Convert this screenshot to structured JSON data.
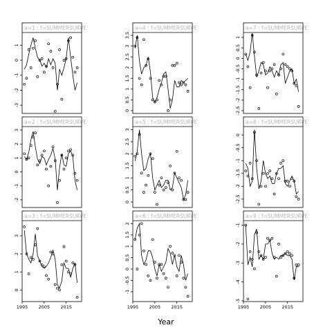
{
  "xlabel": "Year",
  "chart_data": [
    {
      "type": "line",
      "strip_label": "a=1 : f=SUMMERSURVE",
      "xlim": [
        1995,
        2022
      ],
      "ylim": [
        -3.5,
        1.8
      ],
      "yticks": [
        -3,
        -2,
        -1,
        0,
        1
      ],
      "show_xticks": false,
      "line": {
        "x": [
          1996,
          1997,
          1998,
          1999,
          2000,
          2001,
          2002,
          2003,
          2004,
          2005,
          2006,
          2007,
          2008,
          2009,
          2010,
          2011,
          2012,
          2013,
          2014,
          2015,
          2016,
          2017,
          2018,
          2019,
          2020
        ],
        "y": [
          -0.6,
          -0.3,
          0.4,
          1.0,
          1.5,
          0.8,
          0.2,
          0.0,
          -0.4,
          -0.2,
          -0.5,
          0.1,
          -0.3,
          0.1,
          -0.2,
          -2.0,
          -0.6,
          -1.0,
          -0.5,
          0.1,
          1.5,
          0.2,
          -1.0,
          -2.0,
          -1.5
        ]
      },
      "points": {
        "x": [
          1996,
          1997,
          1998,
          1999,
          2000,
          2001,
          2002,
          2003,
          2004,
          2005,
          2006,
          2007,
          2008,
          2009,
          2010,
          2011,
          2012,
          2013,
          2014,
          2015,
          2016,
          2017,
          2018,
          2019,
          2020
        ],
        "y": [
          -1.6,
          -1.2,
          0.7,
          -0.5,
          0.8,
          1.3,
          -1.1,
          0.0,
          0.1,
          -0.8,
          -0.4,
          1.1,
          0.6,
          -0.5,
          -3.4,
          -1.6,
          0.7,
          -2.6,
          0.0,
          0.1,
          1.3,
          1.5,
          0.2,
          -0.8,
          -0.5
        ]
      }
    },
    {
      "type": "line",
      "strip_label": "a=2 : f=SUMMERSURVE",
      "xlim": [
        1995,
        2022
      ],
      "ylim": [
        -2.5,
        3.2
      ],
      "yticks": [
        -2,
        -1,
        0,
        1,
        2,
        3
      ],
      "show_xticks": false,
      "line": {
        "x": [
          1996,
          1997,
          1998,
          1999,
          2000,
          2001,
          2002,
          2003,
          2004,
          2005,
          2006,
          2007,
          2008,
          2009,
          2010,
          2011,
          2012,
          2013,
          2014,
          2015,
          2016,
          2017,
          2018,
          2019,
          2020
        ],
        "y": [
          1.1,
          0.9,
          1.4,
          2.3,
          2.9,
          1.8,
          0.9,
          0.6,
          1.1,
          1.0,
          0.5,
          0.9,
          1.2,
          1.7,
          0.9,
          -1.3,
          0.3,
          1.3,
          0.5,
          0.4,
          1.3,
          1.5,
          1.1,
          -0.6,
          -1.3
        ]
      },
      "points": {
        "x": [
          1996,
          1997,
          1998,
          1999,
          2000,
          2001,
          2002,
          2003,
          2004,
          2005,
          2006,
          2007,
          2008,
          2009,
          2010,
          2011,
          2012,
          2013,
          2014,
          2015,
          2016,
          2017,
          2018,
          2019,
          2020
        ],
        "y": [
          1.3,
          0.9,
          1.0,
          1.9,
          2.5,
          2.8,
          0.5,
          0.8,
          1.2,
          1.5,
          0.2,
          -1.0,
          0.4,
          1.8,
          0.8,
          -2.2,
          -0.6,
          1.2,
          0.2,
          1.0,
          1.5,
          1.6,
          1.2,
          -0.1,
          -0.6
        ]
      }
    },
    {
      "type": "line",
      "strip_label": "a=3 : f=SUMMERSURVE",
      "xlim": [
        1995,
        2022
      ],
      "ylim": [
        -0.6,
        3.8
      ],
      "yticks": [
        0,
        1,
        2,
        3
      ],
      "show_xticks": true,
      "xticks": [
        1995,
        2005,
        2015
      ],
      "line": {
        "x": [
          1996,
          1997,
          1998,
          1999,
          2000,
          2001,
          2002,
          2003,
          2004,
          2005,
          2006,
          2007,
          2008,
          2009,
          2010,
          2011,
          2012,
          2013,
          2014,
          2015,
          2016,
          2017,
          2018,
          2019,
          2020
        ],
        "y": [
          3.3,
          2.0,
          1.7,
          1.5,
          2.0,
          3.1,
          1.9,
          1.6,
          1.3,
          1.2,
          1.3,
          1.5,
          1.8,
          2.2,
          1.7,
          0.3,
          0.1,
          0.5,
          1.5,
          1.2,
          1.2,
          0.7,
          1.2,
          1.5,
          0.4
        ]
      },
      "points": {
        "x": [
          1996,
          1997,
          1998,
          1999,
          2000,
          2001,
          2002,
          2003,
          2004,
          2005,
          2006,
          2007,
          2008,
          2009,
          2010,
          2011,
          2012,
          2013,
          2014,
          2015,
          2016,
          2017,
          2018,
          2019,
          2020
        ],
        "y": [
          3.5,
          2.0,
          0.9,
          1.8,
          1.7,
          2.5,
          3.4,
          1.6,
          1.4,
          1.3,
          0.8,
          0.6,
          2.1,
          2.0,
          0.3,
          0.1,
          0.0,
          1.4,
          2.4,
          1.6,
          1.0,
          0.9,
          1.5,
          1.4,
          -0.4
        ]
      }
    },
    {
      "type": "line",
      "strip_label": "a=4 : f=SUMMERSURVE",
      "xlim": [
        1995,
        2022
      ],
      "ylim": [
        -0.1,
        3.6
      ],
      "yticks": [
        0,
        0.5,
        1,
        1.5,
        2,
        2.5,
        3,
        3.5
      ],
      "show_xticks": false,
      "line": {
        "x": [
          1996,
          1997,
          1998,
          1999,
          2000,
          2001,
          2002,
          2003,
          2004,
          2005,
          2006,
          2007,
          2008,
          2009,
          2010,
          2011,
          2012,
          2013,
          2014,
          2015,
          2016,
          2017,
          2018,
          2019,
          2020
        ],
        "y": [
          2.9,
          3.5,
          2.3,
          1.7,
          2.0,
          2.1,
          2.5,
          1.8,
          0.6,
          0.4,
          0.6,
          1.0,
          1.3,
          1.7,
          1.8,
          1.0,
          0.1,
          0.5,
          1.4,
          1.1,
          1.1,
          1.4,
          1.3,
          1.4,
          1.5
        ]
      },
      "points": {
        "x": [
          1996,
          1997,
          1998,
          1999,
          2000,
          2001,
          2002,
          2003,
          2004,
          2005,
          2006,
          2007,
          2008,
          2009,
          2010,
          2011,
          2012,
          2013,
          2014,
          2015,
          2016,
          2017,
          2018,
          2019,
          2020
        ],
        "y": [
          3.0,
          3.4,
          1.5,
          1.2,
          3.3,
          2.1,
          2.4,
          1.5,
          0.5,
          0.4,
          0.5,
          1.4,
          1.2,
          1.6,
          1.6,
          0.0,
          0.5,
          2.1,
          2.1,
          2.2,
          1.3,
          1.2,
          1.3,
          1.2,
          0.9
        ]
      }
    },
    {
      "type": "line",
      "strip_label": "a=5 : f=SUMMERSURVE",
      "xlim": [
        1995,
        2022
      ],
      "ylim": [
        -0.2,
        3.1
      ],
      "yticks": [
        0,
        0.5,
        1,
        1.5,
        2,
        2.5,
        3
      ],
      "show_xticks": false,
      "line": {
        "x": [
          1996,
          1997,
          1998,
          1999,
          2000,
          2001,
          2002,
          2003,
          2004,
          2005,
          2006,
          2007,
          2008,
          2009,
          2010,
          2011,
          2012,
          2013,
          2014,
          2015,
          2016,
          2017,
          2018,
          2019,
          2020
        ],
        "y": [
          1.7,
          2.1,
          3.0,
          2.0,
          1.3,
          1.4,
          1.8,
          2.0,
          1.0,
          0.5,
          0.7,
          0.9,
          0.6,
          0.7,
          0.9,
          0.9,
          0.5,
          0.6,
          1.2,
          1.0,
          0.8,
          0.6,
          0.1,
          0.3,
          0.9
        ]
      },
      "points": {
        "x": [
          1996,
          1997,
          1998,
          1999,
          2000,
          2001,
          2002,
          2003,
          2004,
          2005,
          2006,
          2007,
          2008,
          2009,
          2010,
          2011,
          2012,
          2013,
          2014,
          2015,
          2016,
          2017,
          2018,
          2019,
          2020
        ],
        "y": [
          1.9,
          2.0,
          2.8,
          1.2,
          0.4,
          0.7,
          1.1,
          2.0,
          1.8,
          0.4,
          -0.1,
          0.7,
          1.0,
          0.5,
          0.6,
          0.8,
          1.5,
          0.5,
          1.2,
          2.1,
          1.0,
          0.9,
          0.1,
          0.1,
          0.4
        ]
      }
    },
    {
      "type": "line",
      "strip_label": "a=6 : f=SUMMERSURVE",
      "xlim": [
        1995,
        2022
      ],
      "ylim": [
        -1.4,
        2.1
      ],
      "yticks": [
        -1,
        -0.5,
        0,
        0.5,
        1,
        1.5,
        2
      ],
      "show_xticks": true,
      "xticks": [
        1995,
        2005,
        2015
      ],
      "line": {
        "x": [
          1996,
          1997,
          1998,
          1999,
          2000,
          2001,
          2002,
          2003,
          2004,
          2005,
          2006,
          2007,
          2008,
          2009,
          2010,
          2011,
          2012,
          2013,
          2014,
          2015,
          2016,
          2017,
          2018,
          2019,
          2020
        ],
        "y": [
          1.3,
          1.8,
          2.0,
          0.6,
          0.2,
          0.4,
          0.8,
          0.8,
          0.5,
          0.0,
          -0.3,
          0.2,
          -0.1,
          0.1,
          0.3,
          0.9,
          0.7,
          0.2,
          0.6,
          0.1,
          -0.1,
          0.6,
          0.2,
          -0.5,
          -0.2
        ]
      },
      "points": {
        "x": [
          1996,
          1997,
          1998,
          1999,
          2000,
          2001,
          2002,
          2003,
          2004,
          2005,
          2006,
          2007,
          2008,
          2009,
          2010,
          2011,
          2012,
          2013,
          2014,
          2015,
          2016,
          2017,
          2018,
          2019,
          2020
        ],
        "y": [
          1.3,
          0.0,
          1.5,
          2.0,
          0.8,
          0.2,
          -0.3,
          -0.5,
          1.3,
          0.3,
          -0.4,
          0.2,
          0.2,
          -0.2,
          -0.4,
          -0.8,
          1.0,
          0.7,
          0.6,
          -0.3,
          0.6,
          0.3,
          -0.4,
          -0.8,
          -1.2
        ]
      }
    },
    {
      "type": "line",
      "strip_label": "a=7 : f=SUMMERSURVE",
      "xlim": [
        1995,
        2022
      ],
      "ylim": [
        -2.6,
        1.2
      ],
      "yticks": [
        -2.5,
        -2,
        -1.5,
        -1,
        -0.5,
        0,
        0.5,
        1
      ],
      "show_xticks": false,
      "line": {
        "x": [
          1996,
          1997,
          1998,
          1999,
          2000,
          2001,
          2002,
          2003,
          2004,
          2005,
          2006,
          2007,
          2008,
          2009,
          2010,
          2011,
          2012,
          2013,
          2014,
          2015,
          2016,
          2017,
          2018,
          2019,
          2020
        ],
        "y": [
          0.2,
          -0.1,
          0.3,
          1.2,
          0.1,
          -0.9,
          -0.6,
          -0.2,
          -0.3,
          -0.8,
          -0.7,
          -0.4,
          -0.6,
          -0.9,
          -0.6,
          -0.8,
          -0.3,
          -0.2,
          -1.2,
          -0.9,
          -0.6,
          -0.5,
          -1.2,
          -1.0,
          -1.6
        ]
      },
      "points": {
        "x": [
          1996,
          1997,
          1998,
          1999,
          2000,
          2001,
          2002,
          2003,
          2004,
          2005,
          2006,
          2007,
          2008,
          2009,
          2010,
          2011,
          2012,
          2013,
          2014,
          2015,
          2016,
          2017,
          2018,
          2019,
          2020
        ],
        "y": [
          0.2,
          -0.4,
          -1.4,
          1.1,
          0.3,
          -0.8,
          -2.4,
          -0.7,
          -0.2,
          -0.6,
          -1.4,
          -0.6,
          -0.5,
          -0.3,
          -1.7,
          -0.8,
          -0.5,
          0.2,
          -0.3,
          -0.4,
          -0.5,
          -0.6,
          -1.2,
          -1.3,
          -2.3
        ]
      }
    },
    {
      "type": "line",
      "strip_label": "a=8 : f=SUMMERSURVE",
      "xlim": [
        1995,
        2022
      ],
      "ylim": [
        -2.8,
        0.3
      ],
      "yticks": [
        -2.5,
        -2,
        -1.5,
        -1,
        -0.5,
        0
      ],
      "show_xticks": false,
      "line": {
        "x": [
          1996,
          1997,
          1998,
          1999,
          2000,
          2001,
          2002,
          2003,
          2004,
          2005,
          2006,
          2007,
          2008,
          2009,
          2010,
          2011,
          2012,
          2013,
          2014,
          2015,
          2016,
          2017,
          2018,
          2019,
          2020
        ],
        "y": [
          -1.1,
          -1.3,
          -2.0,
          -1.8,
          0.2,
          -1.3,
          -2.1,
          -1.8,
          -1.0,
          -1.5,
          -1.7,
          -1.6,
          -1.9,
          -1.9,
          -1.5,
          -1.3,
          -1.3,
          -1.2,
          -1.9,
          -2.0,
          -1.8,
          -1.6,
          -1.8,
          -2.3,
          -2.2
        ]
      },
      "points": {
        "x": [
          1996,
          1997,
          1998,
          1999,
          2000,
          2001,
          2002,
          2003,
          2004,
          2005,
          2006,
          2007,
          2008,
          2009,
          2010,
          2011,
          2012,
          2013,
          2014,
          2015,
          2016,
          2017,
          2018,
          2019,
          2020
        ],
        "y": [
          -1.4,
          -1.6,
          -1.1,
          -1.7,
          0.1,
          -1.0,
          -2.7,
          -2.0,
          -1.5,
          -2.0,
          -1.5,
          -1.4,
          -1.7,
          -2.3,
          -1.5,
          -1.7,
          -1.1,
          -1.0,
          -1.8,
          -1.8,
          -2.0,
          -1.7,
          -1.8,
          -2.4,
          -2.5
        ]
      }
    },
    {
      "type": "line",
      "strip_label": "a=9 : f=SUMMERSURVE",
      "xlim": [
        1995,
        2022
      ],
      "ylim": [
        -5.0,
        -0.8
      ],
      "yticks": [
        -5,
        -4,
        -3,
        -2,
        -1
      ],
      "show_xticks": true,
      "xticks": [
        1995,
        2005,
        2015
      ],
      "line": {
        "x": [
          1996,
          1997,
          1998,
          1999,
          2000,
          2001,
          2002,
          2003,
          2004,
          2005,
          2006,
          2007,
          2008,
          2009,
          2010,
          2011,
          2012,
          2013,
          2014,
          2015,
          2016,
          2017,
          2018,
          2019,
          2020
        ],
        "y": [
          -1.0,
          -3.1,
          -2.7,
          -3.2,
          -1.5,
          -1.2,
          -2.8,
          -2.6,
          -2.8,
          -2.0,
          -2.0,
          -1.8,
          -2.5,
          -2.8,
          -2.7,
          -2.8,
          -2.6,
          -2.6,
          -2.5,
          -2.6,
          -2.6,
          -2.8,
          -3.9,
          -3.2,
          -3.2
        ]
      },
      "points": {
        "x": [
          1996,
          1997,
          1998,
          1999,
          2000,
          2001,
          2002,
          2003,
          2004,
          2005,
          2006,
          2007,
          2008,
          2009,
          2010,
          2011,
          2012,
          2013,
          2014,
          2015,
          2016,
          2017,
          2018,
          2019,
          2020
        ],
        "y": [
          -1.0,
          -4.9,
          -2.4,
          -2.8,
          -3.3,
          -1.4,
          -2.4,
          -2.6,
          -2.8,
          -2.7,
          -1.7,
          -1.8,
          -1.7,
          -2.7,
          -3.7,
          -2.0,
          -2.7,
          -2.6,
          -2.5,
          -2.4,
          -2.5,
          -2.6,
          -3.8,
          -3.1,
          -3.1
        ]
      }
    }
  ]
}
